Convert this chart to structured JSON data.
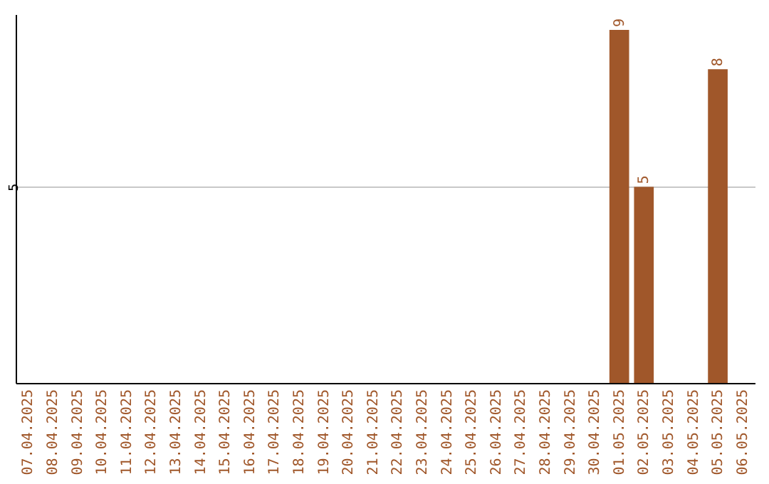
{
  "chart_data": {
    "type": "bar",
    "categories": [
      "07.04.2025",
      "08.04.2025",
      "09.04.2025",
      "10.04.2025",
      "11.04.2025",
      "12.04.2025",
      "13.04.2025",
      "14.04.2025",
      "15.04.2025",
      "16.04.2025",
      "17.04.2025",
      "18.04.2025",
      "19.04.2025",
      "20.04.2025",
      "21.04.2025",
      "22.04.2025",
      "23.04.2025",
      "24.04.2025",
      "25.04.2025",
      "26.04.2025",
      "27.04.2025",
      "28.04.2025",
      "29.04.2025",
      "30.04.2025",
      "01.05.2025",
      "02.05.2025",
      "03.05.2025",
      "04.05.2025",
      "05.05.2025",
      "06.05.2025"
    ],
    "values": [
      null,
      null,
      null,
      null,
      null,
      null,
      null,
      null,
      null,
      null,
      null,
      null,
      null,
      null,
      null,
      null,
      null,
      null,
      null,
      null,
      null,
      null,
      null,
      null,
      9,
      5,
      null,
      null,
      8,
      null
    ],
    "color": "#a0572a",
    "ylim": [
      0,
      9.4
    ],
    "yticks": [
      5
    ],
    "grid": "y",
    "data_labels": true
  }
}
